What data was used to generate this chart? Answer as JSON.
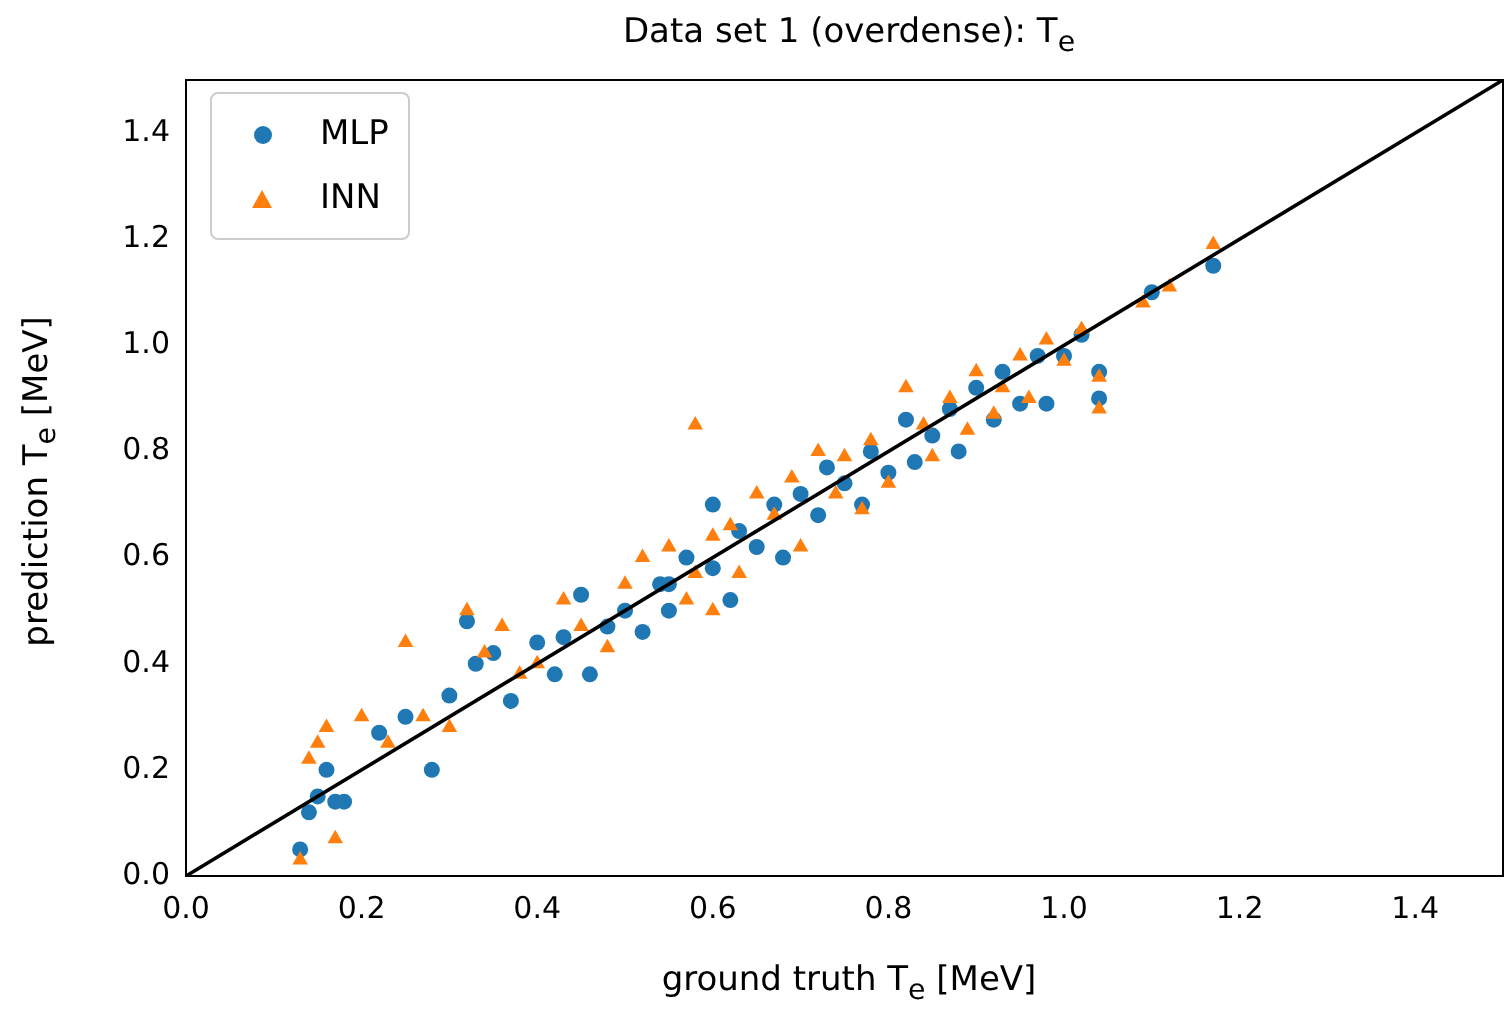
{
  "chart_data": {
    "type": "scatter",
    "title": "Data set 1 (overdense): T$_{e}$",
    "xlabel": "ground truth T$_{e}$ [MeV]",
    "ylabel": "prediction T$_{e}$ [MeV]",
    "xlim": [
      0,
      1.5
    ],
    "ylim": [
      0,
      1.5
    ],
    "xticks": [
      {
        "value": 0,
        "label": "0.0"
      },
      {
        "value": 0.2,
        "label": "0.2"
      },
      {
        "value": 0.4,
        "label": "0.4"
      },
      {
        "value": 0.6,
        "label": "0.6"
      },
      {
        "value": 0.8,
        "label": "0.8"
      },
      {
        "value": 1,
        "label": "1.0"
      },
      {
        "value": 1.2,
        "label": "1.2"
      },
      {
        "value": 1.4,
        "label": "1.4"
      }
    ],
    "yticks": [
      {
        "value": 0,
        "label": "0.0"
      },
      {
        "value": 0.2,
        "label": "0.2"
      },
      {
        "value": 0.4,
        "label": "0.4"
      },
      {
        "value": 0.6,
        "label": "0.6"
      },
      {
        "value": 0.8,
        "label": "0.8"
      },
      {
        "value": 1,
        "label": "1.0"
      },
      {
        "value": 1.2,
        "label": "1.2"
      },
      {
        "value": 1.4,
        "label": "1.4"
      }
    ],
    "grid": false,
    "legend": "top left",
    "series": [
      {
        "name": "MLP",
        "color": "#1f77b4",
        "marker": "circle",
        "x": [
          0.13,
          0.14,
          0.15,
          0.16,
          0.17,
          0.18,
          0.22,
          0.25,
          0.28,
          0.3,
          0.32,
          0.33,
          0.35,
          0.37,
          0.4,
          0.43,
          0.45,
          0.46,
          0.48,
          0.5,
          0.52,
          0.54,
          0.55,
          0.57,
          0.6,
          0.62,
          0.63,
          0.65,
          0.67,
          0.68,
          0.7,
          0.72,
          0.73,
          0.75,
          0.77,
          0.78,
          0.8,
          0.82,
          0.83,
          0.85,
          0.87,
          0.88,
          0.9,
          0.92,
          0.93,
          0.95,
          0.97,
          0.98,
          1.0,
          1.02,
          1.04,
          1.04,
          1.1,
          1.17,
          0.6,
          0.42,
          0.55
        ],
        "values": [
          0.05,
          0.12,
          0.15,
          0.2,
          0.14,
          0.14,
          0.27,
          0.3,
          0.2,
          0.34,
          0.48,
          0.4,
          0.42,
          0.33,
          0.44,
          0.45,
          0.53,
          0.38,
          0.47,
          0.5,
          0.46,
          0.55,
          0.5,
          0.6,
          0.58,
          0.52,
          0.65,
          0.62,
          0.7,
          0.6,
          0.72,
          0.68,
          0.77,
          0.74,
          0.7,
          0.8,
          0.76,
          0.86,
          0.78,
          0.83,
          0.88,
          0.8,
          0.92,
          0.86,
          0.95,
          0.89,
          0.98,
          0.89,
          0.98,
          1.02,
          0.95,
          0.9,
          1.1,
          1.15,
          0.7,
          0.38,
          0.55
        ]
      },
      {
        "name": "INN",
        "color": "#ff7f0e",
        "marker": "triangle",
        "x": [
          0.13,
          0.14,
          0.15,
          0.16,
          0.17,
          0.2,
          0.23,
          0.25,
          0.27,
          0.3,
          0.32,
          0.34,
          0.36,
          0.38,
          0.4,
          0.43,
          0.45,
          0.48,
          0.5,
          0.52,
          0.55,
          0.57,
          0.58,
          0.6,
          0.62,
          0.63,
          0.65,
          0.67,
          0.69,
          0.7,
          0.72,
          0.74,
          0.75,
          0.77,
          0.78,
          0.8,
          0.82,
          0.84,
          0.85,
          0.87,
          0.89,
          0.9,
          0.92,
          0.93,
          0.95,
          0.96,
          0.98,
          1.0,
          1.02,
          1.04,
          1.04,
          1.09,
          1.12,
          1.17,
          0.58,
          0.6
        ],
        "values": [
          0.03,
          0.22,
          0.25,
          0.28,
          0.07,
          0.3,
          0.25,
          0.44,
          0.3,
          0.28,
          0.5,
          0.42,
          0.47,
          0.38,
          0.4,
          0.52,
          0.47,
          0.43,
          0.55,
          0.6,
          0.62,
          0.52,
          0.57,
          0.64,
          0.66,
          0.57,
          0.72,
          0.68,
          0.75,
          0.62,
          0.8,
          0.72,
          0.79,
          0.69,
          0.82,
          0.74,
          0.92,
          0.85,
          0.79,
          0.9,
          0.84,
          0.95,
          0.87,
          0.92,
          0.98,
          0.9,
          1.01,
          0.97,
          1.03,
          0.94,
          0.88,
          1.08,
          1.11,
          1.19,
          0.85,
          0.5
        ]
      },
      {
        "type": "line",
        "color": "#000000",
        "marker": "none",
        "line_style": "solid",
        "x": [
          0,
          1.5
        ],
        "values": [
          0,
          1.5
        ]
      }
    ]
  }
}
